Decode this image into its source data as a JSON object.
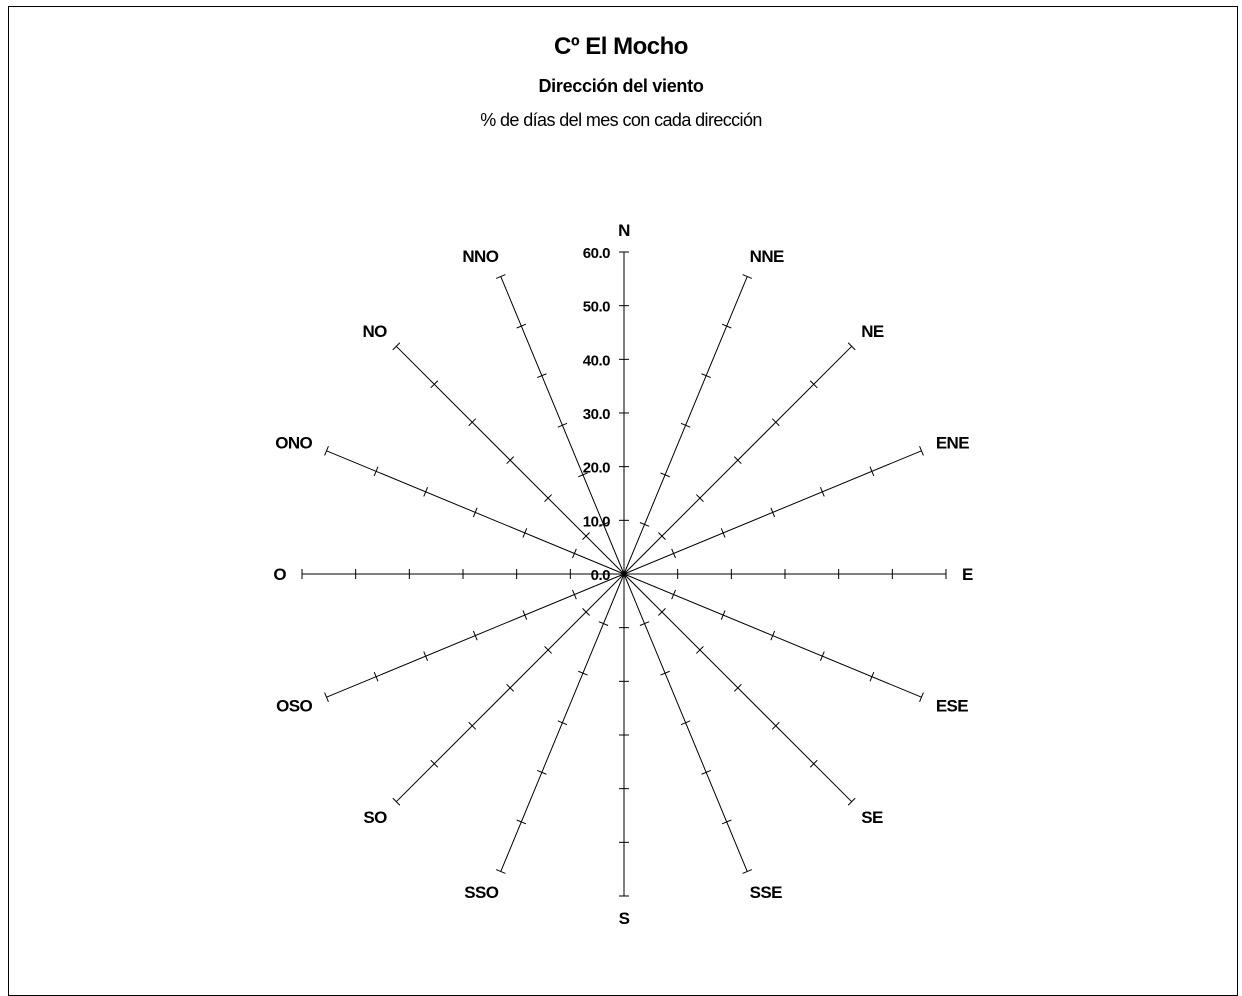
{
  "chart_data": {
    "type": "radar",
    "title": "Cº El Mocho",
    "subtitle": "Dirección del viento",
    "caption": "% de días del mes con cada dirección",
    "directions": [
      "N",
      "NNE",
      "NE",
      "ENE",
      "E",
      "ESE",
      "SE",
      "SSE",
      "S",
      "SSO",
      "SO",
      "OSO",
      "O",
      "ONO",
      "NO",
      "NNO"
    ],
    "tick_labels": [
      "0.0",
      "10.0",
      "20.0",
      "30.0",
      "40.0",
      "50.0",
      "60.0"
    ],
    "rlim": [
      0,
      60
    ],
    "major_step": 10,
    "series": [],
    "axis_color": "#000000"
  }
}
